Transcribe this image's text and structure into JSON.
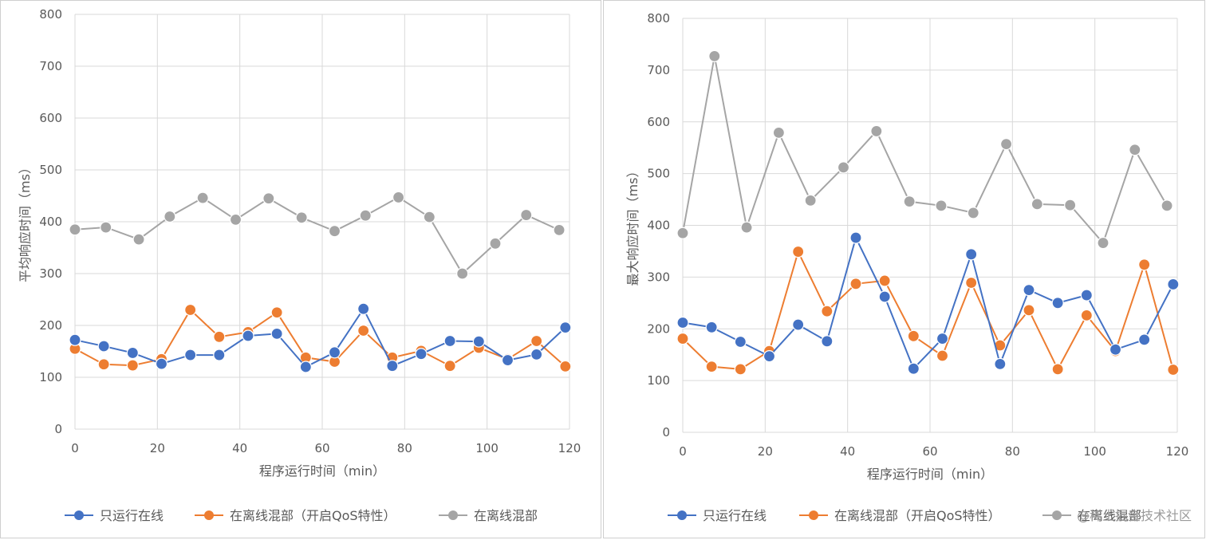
{
  "watermark": "@稀土掘金技术社区",
  "colors": {
    "s1": "#4472C4",
    "s2": "#ED7D31",
    "s3": "#A5A5A5",
    "grid": "#d9d9d9",
    "text": "#595959"
  },
  "chart_data": [
    {
      "type": "line",
      "title": "",
      "xlabel": "程序运行时间（min）",
      "ylabel": "平均响应时间（ms）",
      "xlim": [
        0,
        120
      ],
      "ylim": [
        0,
        800
      ],
      "xticks": [
        0,
        20,
        40,
        60,
        80,
        100,
        120
      ],
      "yticks": [
        0,
        100,
        200,
        300,
        400,
        500,
        600,
        700,
        800
      ],
      "legend_position": "bottom",
      "series": [
        {
          "name": "只运行在线",
          "x": [
            0,
            7,
            14,
            21,
            28,
            35,
            42,
            49,
            56,
            63,
            70,
            77,
            84,
            91,
            98,
            105,
            112,
            119
          ],
          "values": [
            172,
            160,
            147,
            126,
            143,
            143,
            180,
            184,
            120,
            148,
            232,
            122,
            145,
            170,
            169,
            133,
            144,
            196
          ]
        },
        {
          "name": "在离线混部（开启QoS特性）",
          "x": [
            0,
            7,
            14,
            21,
            28,
            35,
            42,
            49,
            56,
            63,
            70,
            77,
            84,
            91,
            98,
            105,
            112,
            119
          ],
          "values": [
            155,
            125,
            123,
            135,
            230,
            178,
            187,
            225,
            138,
            130,
            190,
            138,
            151,
            122,
            157,
            135,
            170,
            121
          ]
        },
        {
          "name": "在离线混部",
          "x": [
            0,
            7.5,
            15.5,
            23,
            31,
            39,
            47,
            55,
            63,
            70.5,
            78.5,
            86,
            94,
            102,
            109.5,
            117.5
          ],
          "values": [
            385,
            389,
            366,
            410,
            446,
            404,
            445,
            408,
            382,
            412,
            447,
            409,
            300,
            358,
            413,
            384
          ]
        }
      ]
    },
    {
      "type": "line",
      "title": "",
      "xlabel": "程序运行时间（min）",
      "ylabel": "最大响应时间（ms）",
      "xlim": [
        0,
        120
      ],
      "ylim": [
        0,
        800
      ],
      "xticks": [
        0,
        20,
        40,
        60,
        80,
        100,
        120
      ],
      "yticks": [
        0,
        100,
        200,
        300,
        400,
        500,
        600,
        700,
        800
      ],
      "legend_position": "bottom",
      "series": [
        {
          "name": "只运行在线",
          "x": [
            0,
            7,
            14,
            21,
            28,
            35,
            42,
            49,
            56,
            63,
            70,
            77,
            84,
            91,
            98,
            105,
            112,
            119
          ],
          "values": [
            212,
            203,
            175,
            147,
            208,
            176,
            376,
            262,
            123,
            181,
            344,
            132,
            275,
            250,
            265,
            160,
            179,
            286
          ]
        },
        {
          "name": "在离线混部（开启QoS特性）",
          "x": [
            0,
            7,
            14,
            21,
            28,
            35,
            42,
            49,
            56,
            63,
            70,
            77,
            84,
            91,
            98,
            105,
            112,
            119
          ],
          "values": [
            181,
            127,
            122,
            157,
            349,
            234,
            287,
            293,
            186,
            148,
            289,
            168,
            236,
            122,
            226,
            157,
            324,
            121
          ]
        },
        {
          "name": "在离线混部",
          "x": [
            0,
            7.7,
            15.5,
            23.3,
            31,
            39,
            47,
            55,
            62.7,
            70.5,
            78.5,
            86,
            94,
            102,
            109.7,
            117.5
          ],
          "values": [
            385,
            727,
            396,
            579,
            448,
            512,
            582,
            446,
            438,
            424,
            557,
            441,
            439,
            366,
            546,
            438
          ]
        }
      ]
    }
  ]
}
